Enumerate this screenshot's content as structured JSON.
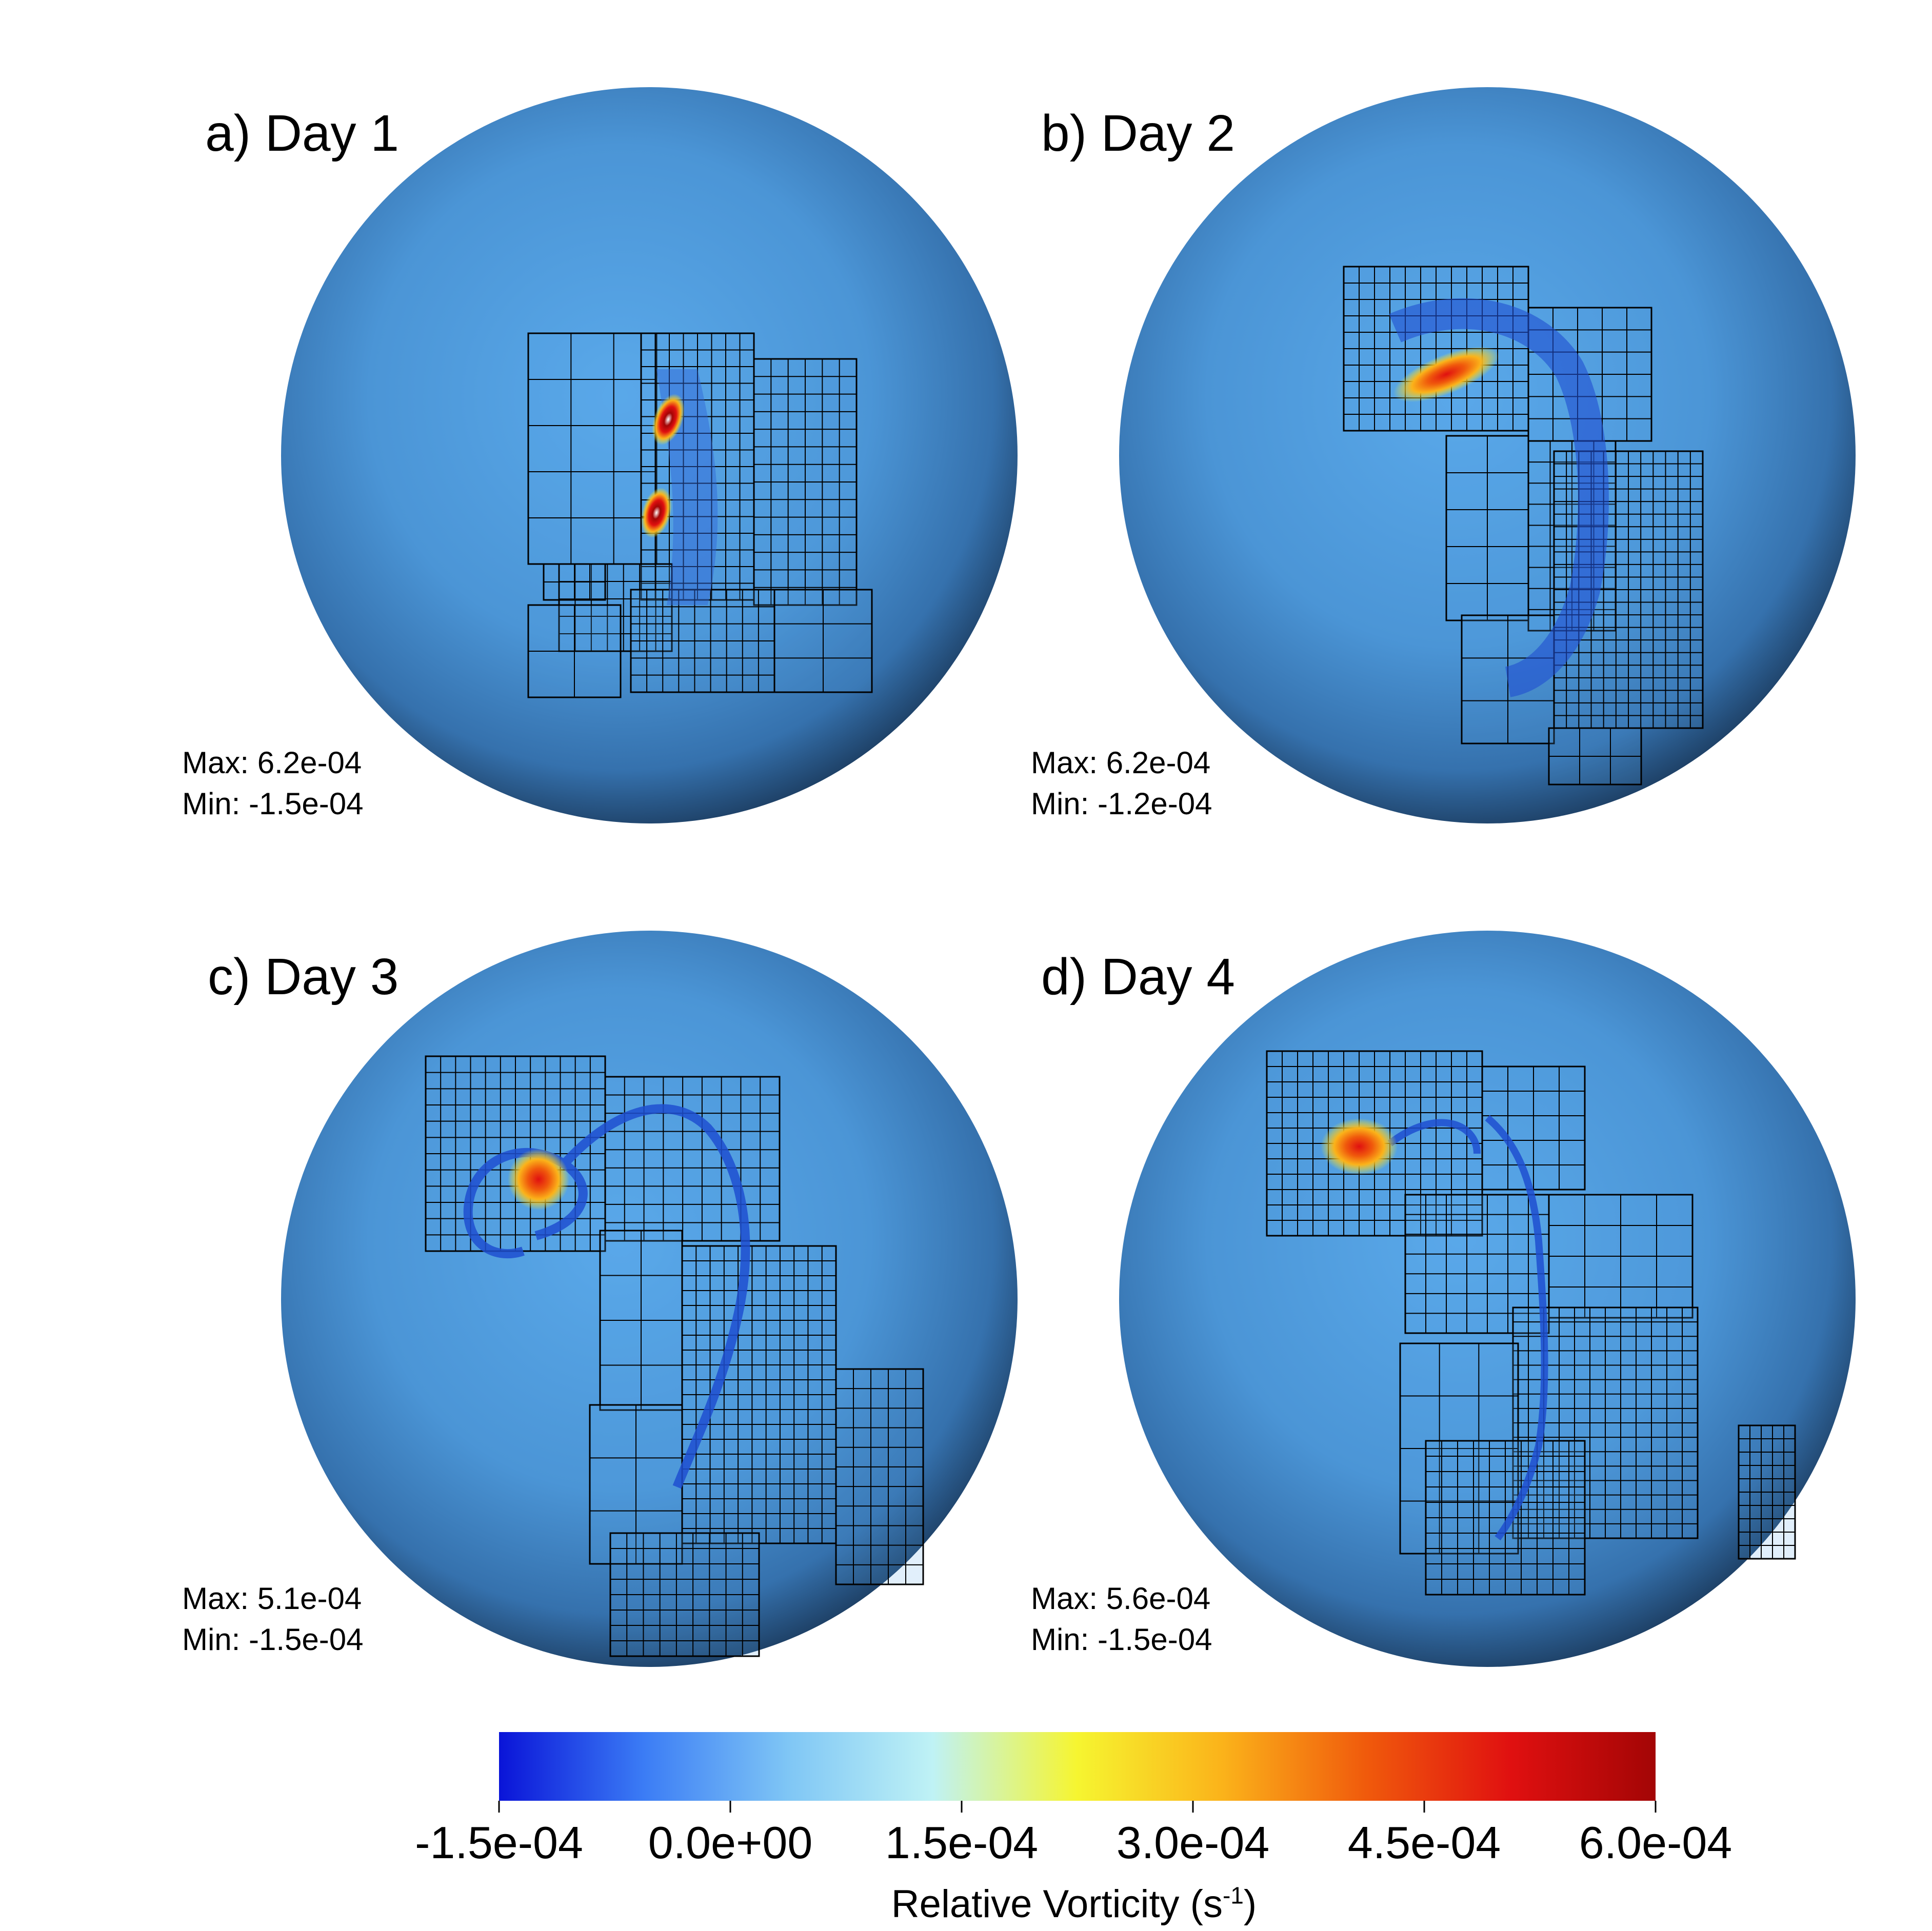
{
  "panels": [
    {
      "id": "a",
      "title": "a) Day 1",
      "max_label": "Max: 6.2e-04",
      "min_label": "Min: -1.5e-04"
    },
    {
      "id": "b",
      "title": "b) Day 2",
      "max_label": "Max: 6.2e-04",
      "min_label": "Min: -1.2e-04"
    },
    {
      "id": "c",
      "title": "c) Day 3",
      "max_label": "Max: 5.1e-04",
      "min_label": "Min: -1.5e-04"
    },
    {
      "id": "d",
      "title": "d) Day 4",
      "max_label": "Max: 5.6e-04",
      "min_label": "Min: -1.5e-04"
    }
  ],
  "colorbar": {
    "title_prefix": "Relative Vorticity (s",
    "title_exponent": "-1",
    "title_suffix": ")",
    "ticks": [
      "-1.5e-04",
      "0.0e+00",
      "1.5e-04",
      "3.0e-04",
      "4.5e-04",
      "6.0e-04"
    ],
    "range": [
      -0.00015,
      0.0006
    ],
    "colors": [
      "#0a14d8",
      "#3b7cf5",
      "#7fc6f5",
      "#bff2f5",
      "#f6f530",
      "#fbb31a",
      "#f05a0c",
      "#e01010",
      "#a30505"
    ]
  },
  "sphere_colors": {
    "center": "#5aa9ea",
    "mid": "#3d7fbf",
    "edge": "#16304e"
  },
  "grid_color": "#000000"
}
